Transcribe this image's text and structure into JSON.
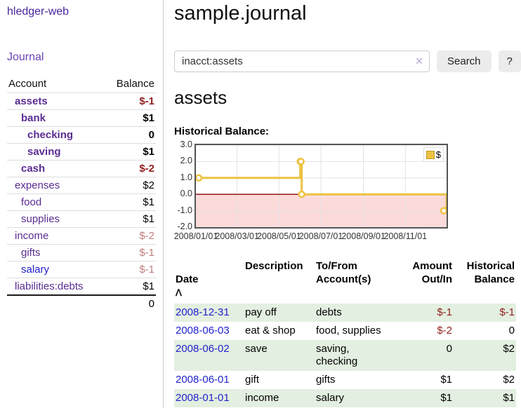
{
  "app": {
    "title": "hledger-web"
  },
  "sidebar": {
    "journal_label": "Journal",
    "accounts_table": {
      "headers": {
        "account": "Account",
        "balance": "Balance"
      },
      "rows": [
        {
          "name": "assets",
          "balance": "$-1",
          "indent": 0,
          "bold": true,
          "balance_style": "neg"
        },
        {
          "name": "bank",
          "balance": "$1",
          "indent": 1,
          "bold": true,
          "balance_style": ""
        },
        {
          "name": "checking",
          "balance": "0",
          "indent": 2,
          "bold": true,
          "balance_style": ""
        },
        {
          "name": "saving",
          "balance": "$1",
          "indent": 2,
          "bold": true,
          "balance_style": ""
        },
        {
          "name": "cash",
          "balance": "$-2",
          "indent": 1,
          "bold": true,
          "balance_style": "neg"
        },
        {
          "name": "expenses",
          "balance": "$2",
          "indent": 0,
          "bold": false,
          "balance_style": ""
        },
        {
          "name": "food",
          "balance": "$1",
          "indent": 1,
          "bold": false,
          "balance_style": ""
        },
        {
          "name": "supplies",
          "balance": "$1",
          "indent": 1,
          "bold": false,
          "balance_style": ""
        },
        {
          "name": "income",
          "balance": "$-2",
          "indent": 0,
          "bold": false,
          "balance_style": "dim"
        },
        {
          "name": "gifts",
          "balance": "$-1",
          "indent": 1,
          "bold": false,
          "balance_style": "dim"
        },
        {
          "name": "salary",
          "balance": "$-1",
          "indent": 1,
          "bold": false,
          "balance_style": "dim",
          "link_style": "unvisited"
        },
        {
          "name": "liabilities:debts",
          "balance": "$1",
          "indent": 0,
          "bold": false,
          "balance_style": ""
        }
      ],
      "total": "0"
    }
  },
  "main": {
    "title": "sample.journal",
    "search": {
      "value": "inacct:assets",
      "clear_icon": "✕",
      "search_label": "Search",
      "help_label": "?"
    },
    "account_heading": "assets",
    "chart_label": "Historical Balance:"
  },
  "chart_data": {
    "type": "line",
    "title": "Historical Balance",
    "step": true,
    "ylim": [
      -2,
      3
    ],
    "y_ticks": [
      "3.0",
      "2.0",
      "1.0",
      "0.0",
      "-1.0",
      "-2.0"
    ],
    "y_tick_values": [
      3,
      2,
      1,
      0,
      -1,
      -2
    ],
    "x_ticks": [
      "2008/01/01",
      "2008/03/01",
      "2008/05/01",
      "2008/07/01",
      "2008/09/01",
      "2008/11/01"
    ],
    "x_tick_days": [
      0,
      60,
      121,
      182,
      244,
      305
    ],
    "x_range_days": 365,
    "grid": true,
    "legend": {
      "label": "$",
      "position": "top-right"
    },
    "line_color": "#edc240",
    "negative_fill": "#fbdada",
    "zero_line_color": "#8b0000",
    "series": [
      {
        "name": "$",
        "points": [
          {
            "date": "2008-01-01",
            "day": 0,
            "value": 1
          },
          {
            "date": "2008-06-01",
            "day": 152,
            "value": 2
          },
          {
            "date": "2008-06-02",
            "day": 153,
            "value": 2
          },
          {
            "date": "2008-06-03",
            "day": 154,
            "value": 0
          },
          {
            "date": "2008-12-31",
            "day": 365,
            "value": -1
          }
        ]
      }
    ]
  },
  "transactions": {
    "headers": {
      "date": "Date",
      "sort_icon": "ᐱ",
      "description": "Description",
      "accounts": "To/From\nAccount(s)",
      "amount": "Amount\nOut/In",
      "balance": "Historical\nBalance"
    },
    "rows": [
      {
        "date": "2008-12-31",
        "description": "pay off",
        "accounts": "debts",
        "amount": "$-1",
        "amount_neg": true,
        "balance": "$-1",
        "balance_neg": true
      },
      {
        "date": "2008-06-03",
        "description": "eat & shop",
        "accounts": "food, supplies",
        "amount": "$-2",
        "amount_neg": true,
        "balance": "0",
        "balance_neg": false
      },
      {
        "date": "2008-06-02",
        "description": "save",
        "accounts": "saving,\nchecking",
        "amount": "0",
        "amount_neg": false,
        "balance": "$2",
        "balance_neg": false
      },
      {
        "date": "2008-06-01",
        "description": "gift",
        "accounts": "gifts",
        "amount": "$1",
        "amount_neg": false,
        "balance": "$2",
        "balance_neg": false
      },
      {
        "date": "2008-01-01",
        "description": "income",
        "accounts": "salary",
        "amount": "$1",
        "amount_neg": false,
        "balance": "$1",
        "balance_neg": false
      }
    ]
  },
  "colors": {
    "accent_purple": "#5b2d91",
    "link_blue": "#2222cc",
    "negative": "#8f1f1f",
    "negative_dim": "#bf7e7e",
    "row_stripe": "#e3efe0"
  }
}
